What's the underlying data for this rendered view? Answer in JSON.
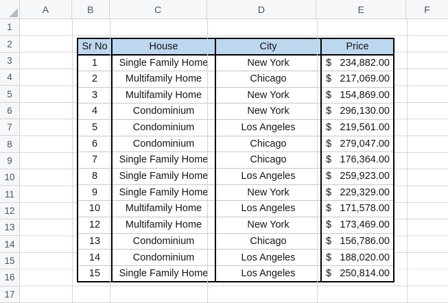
{
  "sheet": {
    "column_headers": [
      "A",
      "B",
      "C",
      "D",
      "E",
      "F"
    ],
    "row_headers": [
      "1",
      "2",
      "3",
      "4",
      "5",
      "6",
      "7",
      "8",
      "9",
      "10",
      "11",
      "12",
      "13",
      "14",
      "15",
      "16",
      "17"
    ]
  },
  "table": {
    "column_headers": [
      "Sr No",
      "House",
      "City",
      "Price"
    ],
    "rows": [
      {
        "sr_no": "1",
        "house": "Single Family Home",
        "city": "New York",
        "currency": "$",
        "amount": "234,882.00"
      },
      {
        "sr_no": "2",
        "house": "Multifamily Home",
        "city": "Chicago",
        "currency": "$",
        "amount": "217,069.00"
      },
      {
        "sr_no": "3",
        "house": "Multifamily Home",
        "city": "New York",
        "currency": "$",
        "amount": "154,869.00"
      },
      {
        "sr_no": "4",
        "house": "Condominium",
        "city": "New York",
        "currency": "$",
        "amount": "296,130.00"
      },
      {
        "sr_no": "5",
        "house": "Condominium",
        "city": "Los Angeles",
        "currency": "$",
        "amount": "219,561.00"
      },
      {
        "sr_no": "6",
        "house": "Condominium",
        "city": "Chicago",
        "currency": "$",
        "amount": "279,047.00"
      },
      {
        "sr_no": "7",
        "house": "Single Family Home",
        "city": "Chicago",
        "currency": "$",
        "amount": "176,364.00"
      },
      {
        "sr_no": "8",
        "house": "Single Family Home",
        "city": "Los Angeles",
        "currency": "$",
        "amount": "259,923.00"
      },
      {
        "sr_no": "9",
        "house": "Single Family Home",
        "city": "New York",
        "currency": "$",
        "amount": "229,329.00"
      },
      {
        "sr_no": "10",
        "house": "Multifamily Home",
        "city": "Los Angeles",
        "currency": "$",
        "amount": "171,578.00"
      },
      {
        "sr_no": "12",
        "house": "Multifamily Home",
        "city": "New York",
        "currency": "$",
        "amount": "173,469.00"
      },
      {
        "sr_no": "13",
        "house": "Condominium",
        "city": "Chicago",
        "currency": "$",
        "amount": "156,786.00"
      },
      {
        "sr_no": "14",
        "house": "Condominium",
        "city": "Los Angeles",
        "currency": "$",
        "amount": "188,020.00"
      },
      {
        "sr_no": "15",
        "house": "Single Family Home",
        "city": "Los Angeles",
        "currency": "$",
        "amount": "250,814.00"
      }
    ]
  },
  "colors": {
    "table_header_fill": "#BDD7EE",
    "table_border": "#000000",
    "table_row_separator": "#C6C6C6",
    "gridline": "#D4D4D4",
    "sheet_header_fill": "#F6F7F8",
    "sheet_header_text": "#44546A"
  }
}
